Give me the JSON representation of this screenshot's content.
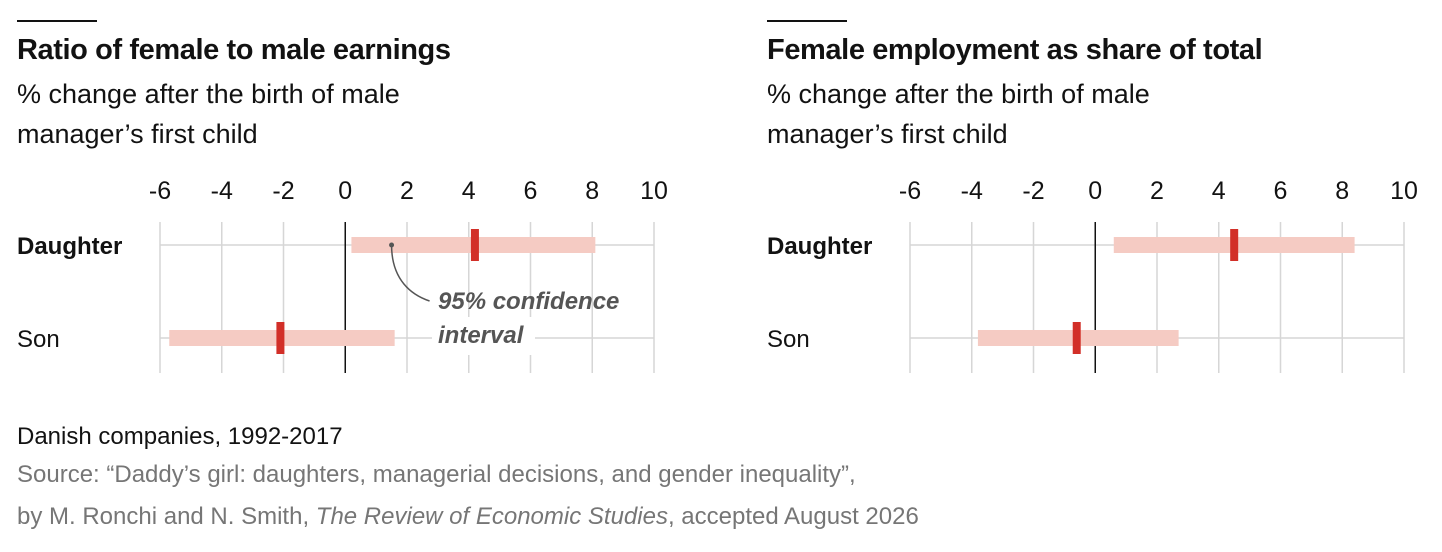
{
  "chart_data": [
    {
      "type": "forest",
      "title": "Ratio of female to male earnings",
      "subtitle": "% change after the birth of male manager’s first child",
      "xlim": [
        -6,
        10
      ],
      "x_ticks": [
        "-6",
        "-4",
        "-2",
        "0",
        "2",
        "4",
        "6",
        "8",
        "10"
      ],
      "categories": [
        "Daughter",
        "Son"
      ],
      "estimates": [
        4.2,
        -2.1
      ],
      "ci_low": [
        0.2,
        -5.7
      ],
      "ci_high": [
        8.1,
        1.6
      ],
      "annotation": [
        "95% confidence",
        "interval"
      ],
      "colors": {
        "estimate": "#d22f28",
        "interval": "#f5cbc3"
      }
    },
    {
      "type": "forest",
      "title": "Female employment as share of total",
      "subtitle": "% change after the birth of male manager’s first child",
      "xlim": [
        -6,
        10
      ],
      "x_ticks": [
        "-6",
        "-4",
        "-2",
        "0",
        "2",
        "4",
        "6",
        "8",
        "10"
      ],
      "categories": [
        "Daughter",
        "Son"
      ],
      "estimates": [
        4.5,
        -0.6
      ],
      "ci_low": [
        0.6,
        -3.8
      ],
      "ci_high": [
        8.4,
        2.7
      ],
      "colors": {
        "estimate": "#d22f28",
        "interval": "#f5cbc3"
      }
    }
  ],
  "footer": {
    "title": "Danish companies, 1992-2017",
    "source_line1": "Source: “Daddy’s girl: daughters, managerial decisions, and gender inequality”,",
    "source_line2_prefix": "by M. Ronchi and N. Smith, ",
    "source_journal": "The Review of Economic Studies",
    "source_line2_suffix": ", accepted August 2026"
  }
}
